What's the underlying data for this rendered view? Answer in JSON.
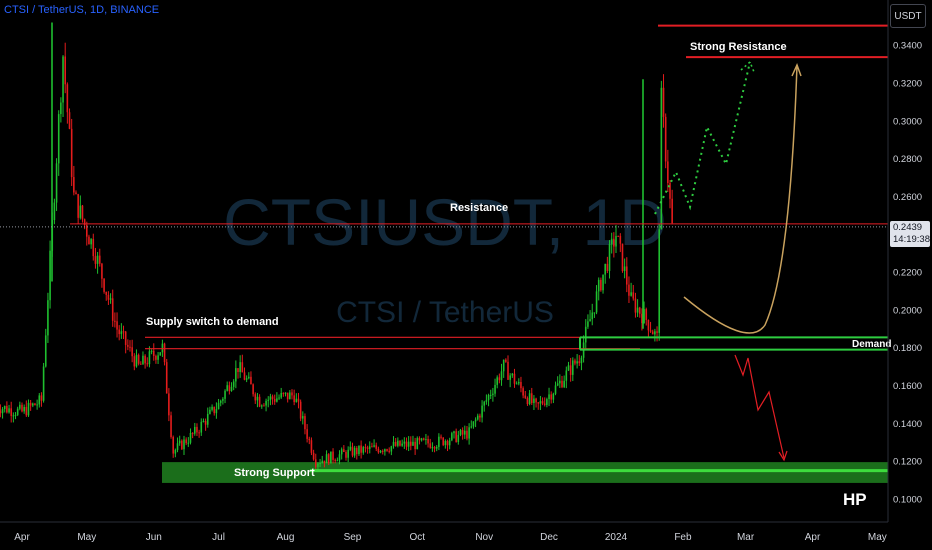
{
  "header": {
    "symbol": "CTSI / TetherUS",
    "interval": "1D",
    "exchange": "BINANCE"
  },
  "price_axis": {
    "currency_button": "USDT",
    "last_price": "0.2439",
    "countdown": "14:19:38"
  },
  "watermark": {
    "line1": "CTSIUSDT, 1D",
    "line2": "CTSI / TetherUS"
  },
  "signature": "HP",
  "colors": {
    "background": "#000000",
    "up_candle": "#26a69a",
    "down_candle": "#ef5350",
    "up_candle_bright": "#1fbf2f",
    "down_candle_bright": "#e41c1c",
    "resistance_line": "#e31e24",
    "demand_line": "#2ecc40",
    "support_zone": "#1b6e1b",
    "support_line": "#3ddc3d",
    "bullish_projection": "#2ecc40",
    "bearish_projection": "#e31e24",
    "curve_projection": "#c9a25e",
    "axis_text": "#d1d4dc"
  },
  "chart_data": {
    "type": "candlestick",
    "title": "CTSI / TetherUS, 1D, BINANCE",
    "y_axis": {
      "label": "USDT",
      "scale": "linear",
      "range": [
        0.095,
        0.352
      ],
      "ticks": [
        "0.3400",
        "0.3200",
        "0.3000",
        "0.2800",
        "0.2600",
        "0.2200",
        "0.2000",
        "0.1800",
        "0.1600",
        "0.1400",
        "0.1200",
        "0.1000"
      ]
    },
    "x_axis": {
      "ticks": [
        "Apr",
        "May",
        "Jun",
        "Jul",
        "Aug",
        "Sep",
        "Oct",
        "Nov",
        "Dec",
        "2024",
        "Feb",
        "Mar",
        "Apr",
        "May"
      ]
    },
    "grid": false,
    "series_approx_close": [
      {
        "x": "2023-03-20",
        "y": 0.149
      },
      {
        "x": "2023-04-01",
        "y": 0.146
      },
      {
        "x": "2023-04-10",
        "y": 0.152
      },
      {
        "x": "2023-04-18",
        "y": 0.3
      },
      {
        "x": "2023-04-20",
        "y": 0.335
      },
      {
        "x": "2023-04-25",
        "y": 0.26
      },
      {
        "x": "2023-05-05",
        "y": 0.23
      },
      {
        "x": "2023-05-15",
        "y": 0.19
      },
      {
        "x": "2023-05-25",
        "y": 0.17
      },
      {
        "x": "2023-06-05",
        "y": 0.18
      },
      {
        "x": "2023-06-10",
        "y": 0.125
      },
      {
        "x": "2023-06-20",
        "y": 0.135
      },
      {
        "x": "2023-07-01",
        "y": 0.15
      },
      {
        "x": "2023-07-10",
        "y": 0.17
      },
      {
        "x": "2023-07-20",
        "y": 0.152
      },
      {
        "x": "2023-08-05",
        "y": 0.155
      },
      {
        "x": "2023-08-15",
        "y": 0.12
      },
      {
        "x": "2023-09-01",
        "y": 0.125
      },
      {
        "x": "2023-09-20",
        "y": 0.128
      },
      {
        "x": "2023-10-10",
        "y": 0.13
      },
      {
        "x": "2023-10-25",
        "y": 0.135
      },
      {
        "x": "2023-11-01",
        "y": 0.15
      },
      {
        "x": "2023-11-10",
        "y": 0.17
      },
      {
        "x": "2023-11-25",
        "y": 0.148
      },
      {
        "x": "2023-12-05",
        "y": 0.16
      },
      {
        "x": "2023-12-15",
        "y": 0.175
      },
      {
        "x": "2023-12-25",
        "y": 0.215
      },
      {
        "x": "2024-01-01",
        "y": 0.24
      },
      {
        "x": "2024-01-08",
        "y": 0.205
      },
      {
        "x": "2024-01-15",
        "y": 0.195
      },
      {
        "x": "2024-01-20",
        "y": 0.185
      },
      {
        "x": "2024-01-22",
        "y": 0.31
      },
      {
        "x": "2024-01-27",
        "y": 0.2439
      }
    ],
    "levels": [
      {
        "label": "Strong Resistance",
        "price": 0.334,
        "color": "#e31e24"
      },
      {
        "label": "",
        "price": 0.35,
        "color": "#e31e24"
      },
      {
        "label": "Resistance",
        "price": 0.2455,
        "color": "#e31e24"
      },
      {
        "label": "Supply switch to demand",
        "price": 0.1855,
        "color": "#e31e24"
      },
      {
        "label": "",
        "price": 0.1795,
        "color": "#e31e24"
      },
      {
        "label": "Demand",
        "price": 0.1855,
        "color": "#2ecc40"
      },
      {
        "label": "",
        "price": 0.179,
        "color": "#2ecc40"
      },
      {
        "label": "Strong Support",
        "price": 0.1165,
        "color": "#2ecc40"
      }
    ],
    "annotations": [
      "Resistance",
      "Strong Resistance",
      "Supply switch to demand",
      "Demand",
      "Strong Support"
    ]
  }
}
